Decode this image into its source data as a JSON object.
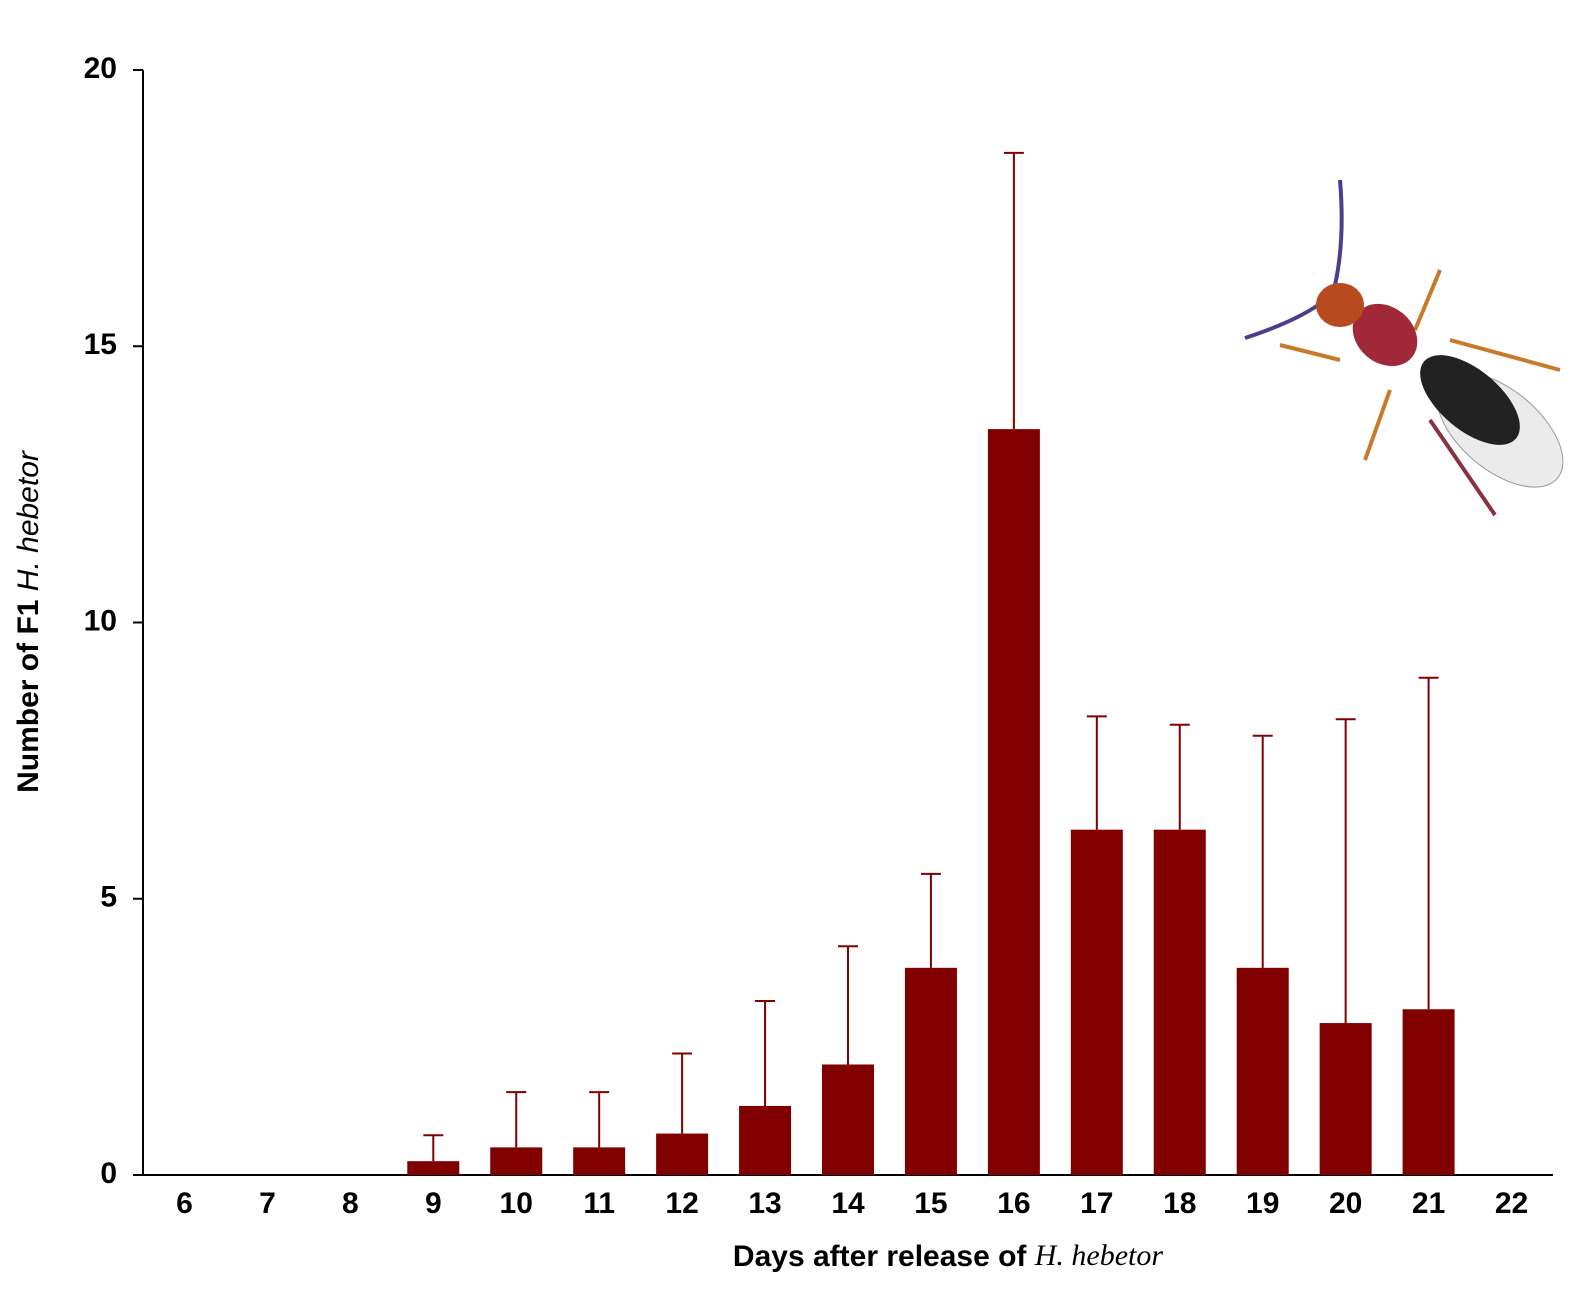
{
  "chart_data": {
    "type": "bar",
    "x_label": "Days after release of",
    "x_label_species": "H. hebetor",
    "y_label": "Number of F1",
    "y_label_species": "H. hebetor",
    "categories": [
      "6",
      "7",
      "8",
      "9",
      "10",
      "11",
      "12",
      "13",
      "14",
      "15",
      "16",
      "17",
      "18",
      "19",
      "20",
      "21",
      "22"
    ],
    "values": [
      0,
      0,
      0,
      0.25,
      0.5,
      0.5,
      0.75,
      1.25,
      2,
      3.75,
      13.5,
      6.25,
      6.25,
      3.75,
      2.75,
      3,
      0
    ],
    "errors": [
      null,
      null,
      null,
      0.47,
      1,
      1,
      1.45,
      1.9,
      2.14,
      1.7,
      5,
      2.05,
      1.9,
      4.2,
      5.5,
      6,
      null
    ],
    "color": "#800000",
    "ylim": [
      0,
      20
    ],
    "yticks": [
      0,
      5,
      10,
      15,
      20
    ],
    "grid": false
  }
}
